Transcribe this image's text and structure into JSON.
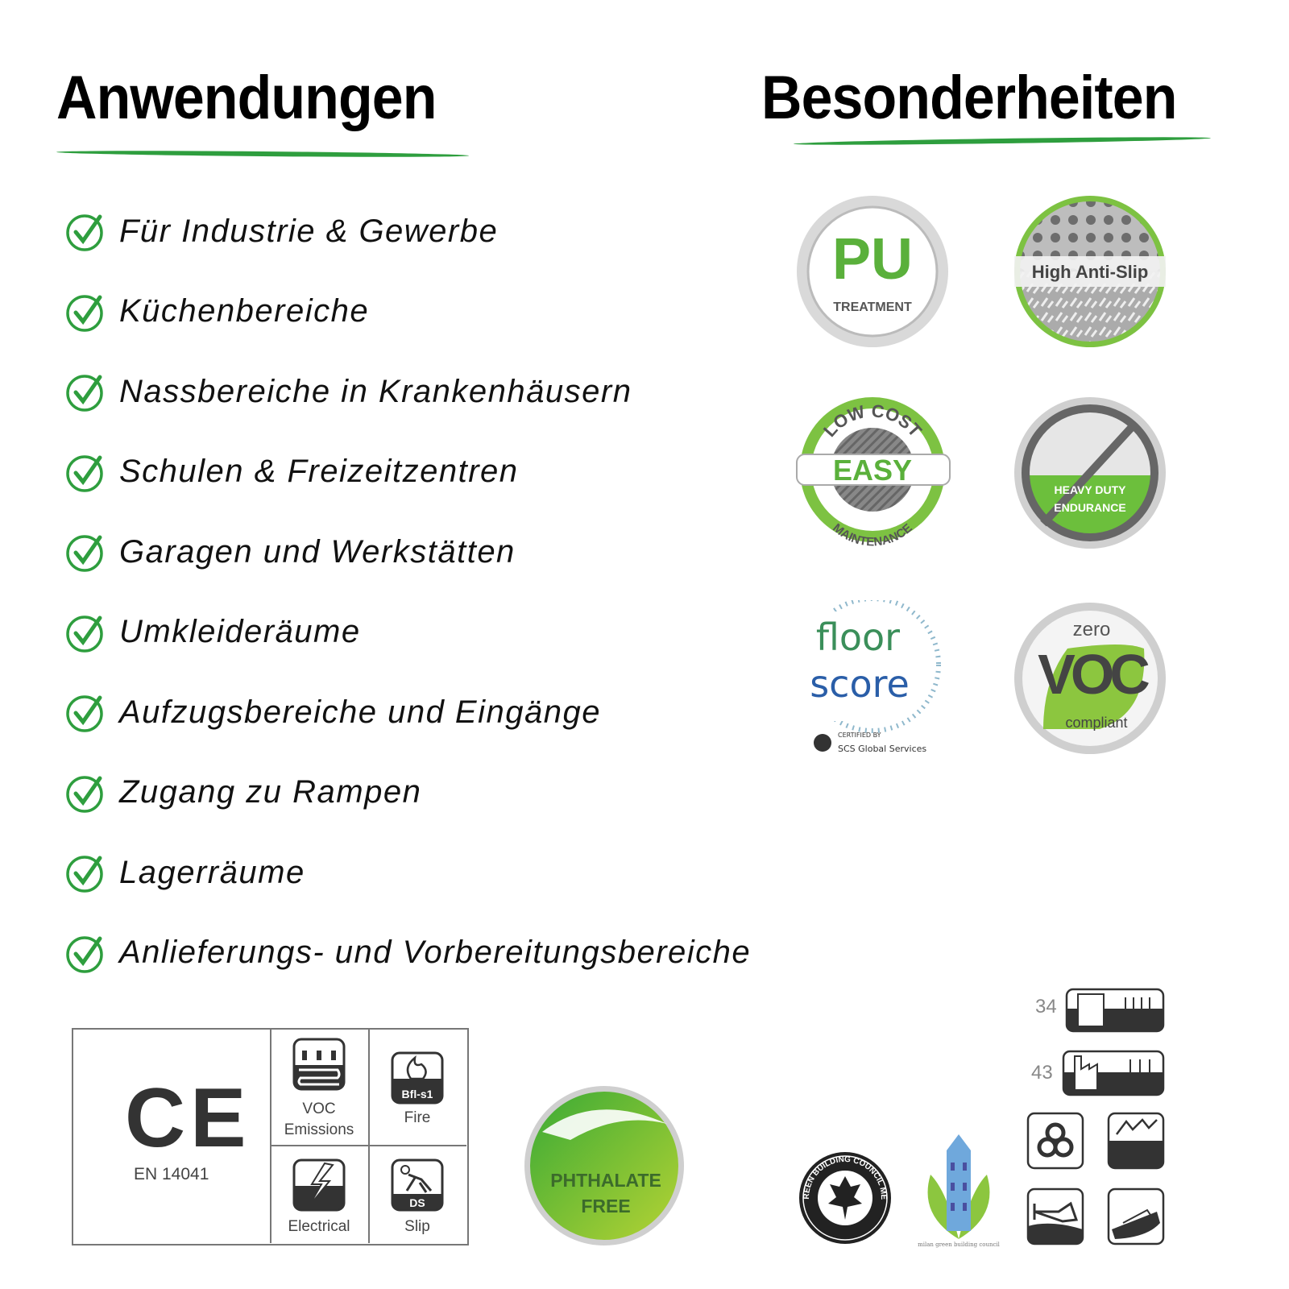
{
  "headings": {
    "left": "Anwendungen",
    "right": "Besonderheiten"
  },
  "colors": {
    "accent_green": "#2e9e3e",
    "badge_green": "#7dc242",
    "dark_icon": "#3a3a3a"
  },
  "applications": [
    "Für Industrie & Gewerbe",
    "Küchenbereiche",
    "Nassbereiche in Krankenhäusern",
    "Schulen & Freizeitzentren",
    "Garagen und Werkstätten",
    "Umkleideräume",
    "Aufzugsbereiche und Eingänge",
    "Zugang zu Rampen",
    "Lagerräume",
    "Anlieferungs- und Vorbereitungsbereiche"
  ],
  "features": {
    "pu": {
      "big": "PU",
      "small": "TREATMENT"
    },
    "antislip": {
      "label": "High Anti-Slip"
    },
    "easy": {
      "top": "LOW COST",
      "mid": "EASY",
      "bottom": "MAINTENANCE"
    },
    "heavy": {
      "line1": "HEAVY DUTY",
      "line2": "ENDURANCE"
    },
    "floorscore": {
      "line1": "floor",
      "line2": "score",
      "cert1": "CERTIFIED BY",
      "cert2": "SCS Global Services"
    },
    "voc": {
      "top": "zero",
      "mid": "VOC",
      "bottom": "compliant"
    }
  },
  "certifications": {
    "ce": {
      "mark": "CE",
      "norm": "EN 14041"
    },
    "voc_label": "VOC\nEmissions",
    "voc_line1": "VOC",
    "voc_line2": "Emissions",
    "fire_label": "Fire",
    "fire_class": "Bfl-s1",
    "electrical_label": "Electrical",
    "slip_label": "Slip",
    "slip_class": "DS",
    "phthalate_line1": "PHTHALATE",
    "phthalate_line2": "FREE",
    "usgbc": "U.S. GREEN BUILDING COUNCIL MEMBER",
    "milan": "milan green building council",
    "class_34": "34",
    "class_43": "43"
  }
}
